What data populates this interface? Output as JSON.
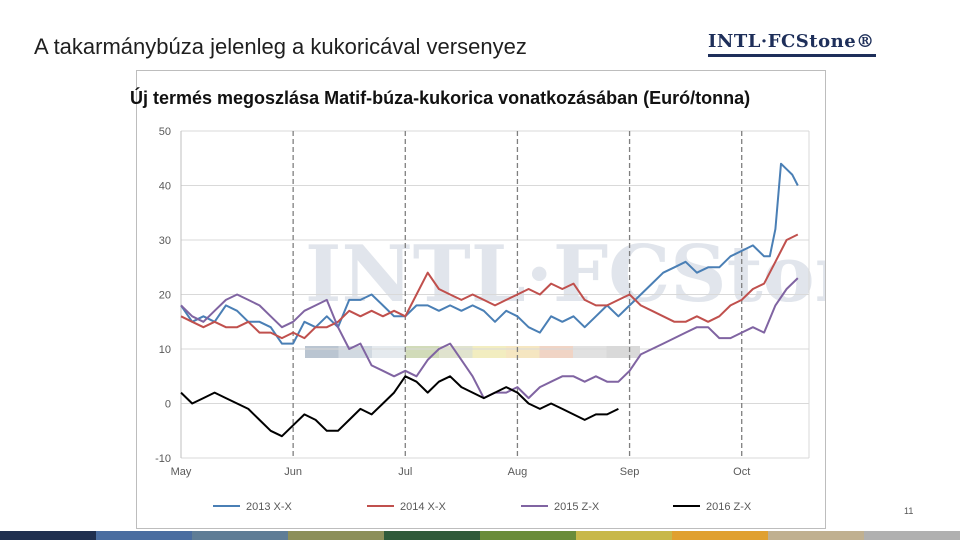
{
  "slide": {
    "title": "A takarmánybúza jelenleg a kukoricával versenyez",
    "page_number": "11"
  },
  "logo": {
    "text": "INTL·FCStone®",
    "colors": {
      "navy": "#1e2f5a"
    }
  },
  "footer_colors": [
    "#1f2f4f",
    "#4a6da0",
    "#5f7d96",
    "#8c8f5a",
    "#2f5a3a",
    "#6a8c3a",
    "#c8b84a",
    "#e0a030",
    "#c0b090",
    "#b0b0b0"
  ],
  "chart_data": {
    "type": "line",
    "title": "Új termés megoszlása Matif-búza-kukorica vonatkozásában (Euró/tonna)",
    "xlabel": "",
    "ylabel": "",
    "ylim": [
      -10,
      50
    ],
    "yticks": [
      -10,
      0,
      10,
      20,
      30,
      40,
      50
    ],
    "x_range": [
      0,
      5.6
    ],
    "month_ticks": [
      {
        "label": "May",
        "x": 0
      },
      {
        "label": "Jun",
        "x": 1
      },
      {
        "label": "Jul",
        "x": 2
      },
      {
        "label": "Aug",
        "x": 3
      },
      {
        "label": "Sep",
        "x": 4
      },
      {
        "label": "Oct",
        "x": 5
      }
    ],
    "grid": "horizontal",
    "dashed_month_lines": true,
    "legend": "bottom",
    "series": [
      {
        "name": "2013 X-X",
        "color": "#4a7fb5",
        "x": [
          0,
          0.1,
          0.2,
          0.3,
          0.4,
          0.5,
          0.6,
          0.7,
          0.8,
          0.9,
          1.0,
          1.1,
          1.2,
          1.3,
          1.4,
          1.5,
          1.6,
          1.7,
          1.8,
          1.9,
          2.0,
          2.1,
          2.2,
          2.3,
          2.4,
          2.5,
          2.6,
          2.7,
          2.8,
          2.9,
          3.0,
          3.1,
          3.2,
          3.3,
          3.4,
          3.5,
          3.6,
          3.7,
          3.8,
          3.9,
          4.0,
          4.1,
          4.2,
          4.3,
          4.4,
          4.5,
          4.6,
          4.7,
          4.8,
          4.9,
          5.0,
          5.1,
          5.2,
          5.25,
          5.3,
          5.35,
          5.4,
          5.45,
          5.5
        ],
        "values": [
          18,
          15,
          16,
          15,
          18,
          17,
          15,
          15,
          14,
          11,
          11,
          15,
          14,
          16,
          14,
          19,
          19,
          20,
          18,
          16,
          16,
          18,
          18,
          17,
          18,
          17,
          18,
          17,
          15,
          17,
          16,
          14,
          13,
          16,
          15,
          16,
          14,
          16,
          18,
          16,
          18,
          20,
          22,
          24,
          25,
          26,
          24,
          25,
          25,
          27,
          28,
          29,
          27,
          27,
          32,
          44,
          43,
          42,
          40
        ]
      },
      {
        "name": "2014 X-X",
        "color": "#c0504d",
        "x": [
          0,
          0.1,
          0.2,
          0.3,
          0.4,
          0.5,
          0.6,
          0.7,
          0.8,
          0.9,
          1.0,
          1.1,
          1.2,
          1.3,
          1.4,
          1.5,
          1.6,
          1.7,
          1.8,
          1.9,
          2.0,
          2.1,
          2.2,
          2.3,
          2.4,
          2.5,
          2.6,
          2.7,
          2.8,
          2.9,
          3.0,
          3.1,
          3.2,
          3.3,
          3.4,
          3.5,
          3.6,
          3.7,
          3.8,
          3.9,
          4.0,
          4.1,
          4.2,
          4.3,
          4.4,
          4.5,
          4.6,
          4.7,
          4.8,
          4.9,
          5.0,
          5.1,
          5.2,
          5.3,
          5.4,
          5.5
        ],
        "values": [
          16,
          15,
          14,
          15,
          14,
          14,
          15,
          13,
          13,
          12,
          13,
          12,
          14,
          14,
          15,
          17,
          16,
          17,
          16,
          17,
          16,
          20,
          24,
          21,
          20,
          19,
          20,
          19,
          18,
          19,
          20,
          21,
          20,
          22,
          21,
          22,
          19,
          18,
          18,
          19,
          20,
          18,
          17,
          16,
          15,
          15,
          16,
          15,
          16,
          18,
          19,
          21,
          22,
          26,
          30,
          31
        ]
      },
      {
        "name": "2015 Z-X",
        "color": "#8064a2",
        "x": [
          0,
          0.1,
          0.2,
          0.3,
          0.4,
          0.5,
          0.6,
          0.7,
          0.8,
          0.9,
          1.0,
          1.1,
          1.2,
          1.3,
          1.4,
          1.5,
          1.6,
          1.7,
          1.8,
          1.9,
          2.0,
          2.1,
          2.2,
          2.3,
          2.4,
          2.5,
          2.6,
          2.7,
          2.8,
          2.9,
          3.0,
          3.1,
          3.2,
          3.3,
          3.4,
          3.5,
          3.6,
          3.7,
          3.8,
          3.9,
          4.0,
          4.1,
          4.2,
          4.3,
          4.4,
          4.5,
          4.6,
          4.7,
          4.8,
          4.9,
          5.0,
          5.1,
          5.2,
          5.3,
          5.4,
          5.5
        ],
        "values": [
          18,
          16,
          15,
          17,
          19,
          20,
          19,
          18,
          16,
          14,
          15,
          17,
          18,
          19,
          14,
          10,
          11,
          7,
          6,
          5,
          6,
          5,
          8,
          10,
          11,
          8,
          5,
          1,
          2,
          2,
          3,
          1,
          3,
          4,
          5,
          5,
          4,
          5,
          4,
          4,
          6,
          9,
          10,
          11,
          12,
          13,
          14,
          14,
          12,
          12,
          13,
          14,
          13,
          18,
          21,
          23
        ]
      },
      {
        "name": "2016 Z-X",
        "color": "#000000",
        "x": [
          0,
          0.1,
          0.2,
          0.3,
          0.4,
          0.5,
          0.6,
          0.7,
          0.8,
          0.9,
          1.0,
          1.1,
          1.2,
          1.3,
          1.4,
          1.5,
          1.6,
          1.7,
          1.8,
          1.9,
          2.0,
          2.1,
          2.2,
          2.3,
          2.4,
          2.5,
          2.6,
          2.7,
          2.8,
          2.9,
          3.0,
          3.1,
          3.2,
          3.3,
          3.4,
          3.5,
          3.6,
          3.7,
          3.8,
          3.9
        ],
        "values": [
          2,
          0,
          1,
          2,
          1,
          0,
          -1,
          -3,
          -5,
          -6,
          -4,
          -2,
          -3,
          -5,
          -5,
          -3,
          -1,
          -2,
          0,
          2,
          5,
          4,
          2,
          4,
          5,
          3,
          2,
          1,
          2,
          3,
          2,
          0,
          -1,
          0,
          -1,
          -2,
          -3,
          -2,
          -2,
          -1
        ]
      }
    ]
  }
}
